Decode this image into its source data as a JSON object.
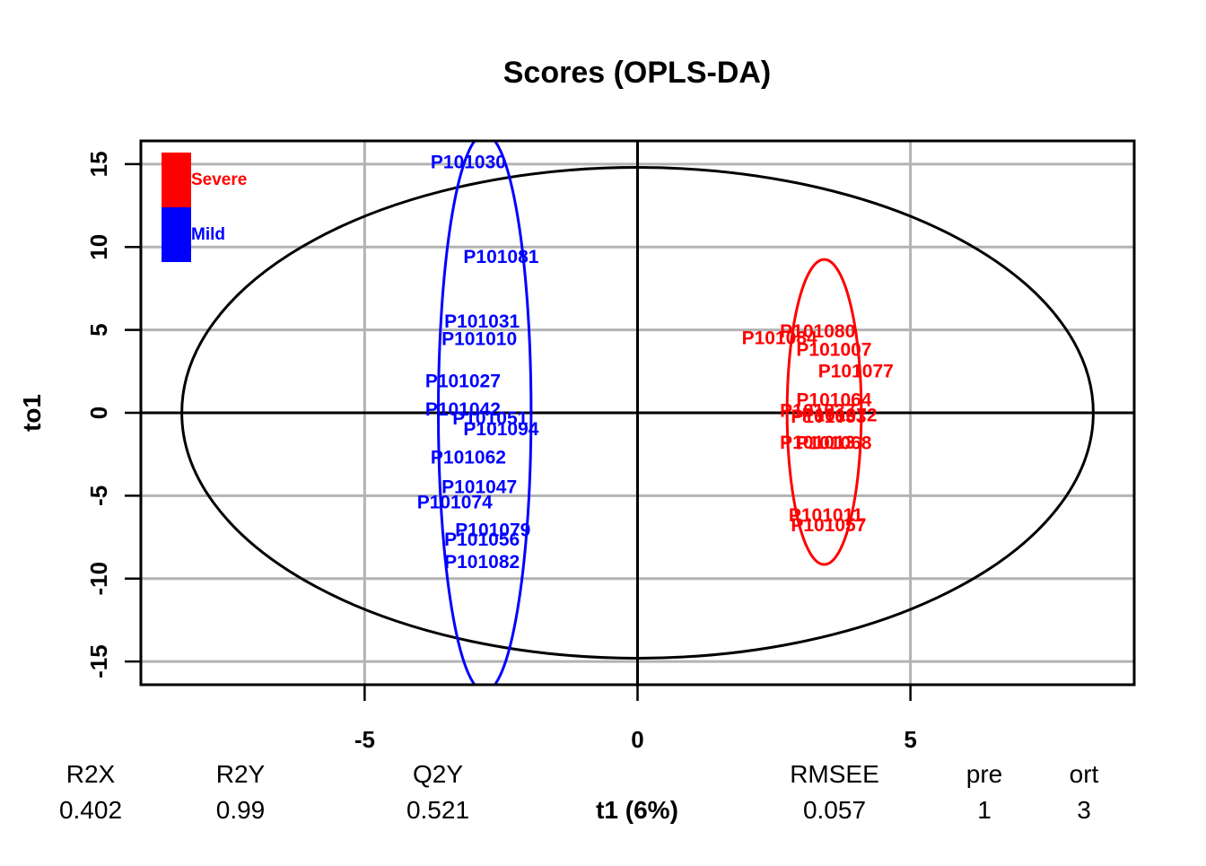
{
  "chart_data": {
    "type": "scatter",
    "title": "Scores (OPLS-DA)",
    "xlabel": "t1 (6%)",
    "ylabel": "to1",
    "xlim": [
      -9.1,
      9.1
    ],
    "ylim": [
      -16.4,
      16.4
    ],
    "x_ticks": [
      -5,
      0,
      5
    ],
    "y_ticks": [
      -15,
      -10,
      -5,
      0,
      5,
      10,
      15
    ],
    "x_tick_labels": [
      "-5",
      "0",
      "5"
    ],
    "y_tick_labels": [
      "-15",
      "-10",
      "-5",
      "0",
      "5",
      "10",
      "15"
    ],
    "grid": true,
    "legend_placement": "top-left",
    "hotelling_ellipse": {
      "cx": 0,
      "cy": 0,
      "rx": 8.35,
      "ry": 14.8,
      "color": "#000000"
    },
    "series": [
      {
        "name": "Severe",
        "color": "#ff0000",
        "ellipse": {
          "cx": 3.42,
          "cy": 0.05,
          "rx": 0.68,
          "ry": 9.2
        },
        "points": [
          {
            "label": "P101080",
            "x": 3.3,
            "y": 4.9
          },
          {
            "label": "P101084",
            "x": 2.6,
            "y": 4.5
          },
          {
            "label": "P101007",
            "x": 3.6,
            "y": 3.8
          },
          {
            "label": "P101077",
            "x": 4.0,
            "y": 2.5
          },
          {
            "label": "P101064",
            "x": 3.6,
            "y": 0.75
          },
          {
            "label": "P101037",
            "x": 3.3,
            "y": 0.1
          },
          {
            "label": "P101072",
            "x": 3.7,
            "y": -0.15
          },
          {
            "label": "P101033",
            "x": 3.5,
            "y": -0.25
          },
          {
            "label": "P101013",
            "x": 3.3,
            "y": -1.8
          },
          {
            "label": "P101068",
            "x": 3.6,
            "y": -1.85
          },
          {
            "label": "P101011",
            "x": 3.45,
            "y": -6.2
          },
          {
            "label": "P101057",
            "x": 3.5,
            "y": -6.8
          }
        ]
      },
      {
        "name": "Mild",
        "color": "#0000ff",
        "ellipse": {
          "cx": -2.8,
          "cy": 0.0,
          "rx": 0.85,
          "ry": 16.8
        },
        "points": [
          {
            "label": "P101030",
            "x": -3.1,
            "y": 15.1
          },
          {
            "label": "P101081",
            "x": -2.5,
            "y": 9.4
          },
          {
            "label": "P101031",
            "x": -2.85,
            "y": 5.5
          },
          {
            "label": "P101010",
            "x": -2.9,
            "y": 4.45
          },
          {
            "label": "P101027",
            "x": -3.2,
            "y": 1.9
          },
          {
            "label": "P101042",
            "x": -3.2,
            "y": 0.2
          },
          {
            "label": "P101051",
            "x": -2.7,
            "y": -0.35
          },
          {
            "label": "P101094",
            "x": -2.5,
            "y": -1.0
          },
          {
            "label": "P101062",
            "x": -3.1,
            "y": -2.7
          },
          {
            "label": "P101047",
            "x": -2.9,
            "y": -4.5
          },
          {
            "label": "P101074",
            "x": -3.35,
            "y": -5.4
          },
          {
            "label": "P101079",
            "x": -2.65,
            "y": -7.1
          },
          {
            "label": "P101056",
            "x": -2.85,
            "y": -7.65
          },
          {
            "label": "P101082",
            "x": -2.85,
            "y": -9.0
          }
        ]
      }
    ],
    "stats": [
      {
        "name": "R2X",
        "value": "0.402"
      },
      {
        "name": "R2Y",
        "value": "0.99"
      },
      {
        "name": "Q2Y",
        "value": "0.521"
      },
      {
        "name": "RMSEE",
        "value": "0.057"
      },
      {
        "name": "pre",
        "value": "1"
      },
      {
        "name": "ort",
        "value": "3"
      }
    ]
  }
}
